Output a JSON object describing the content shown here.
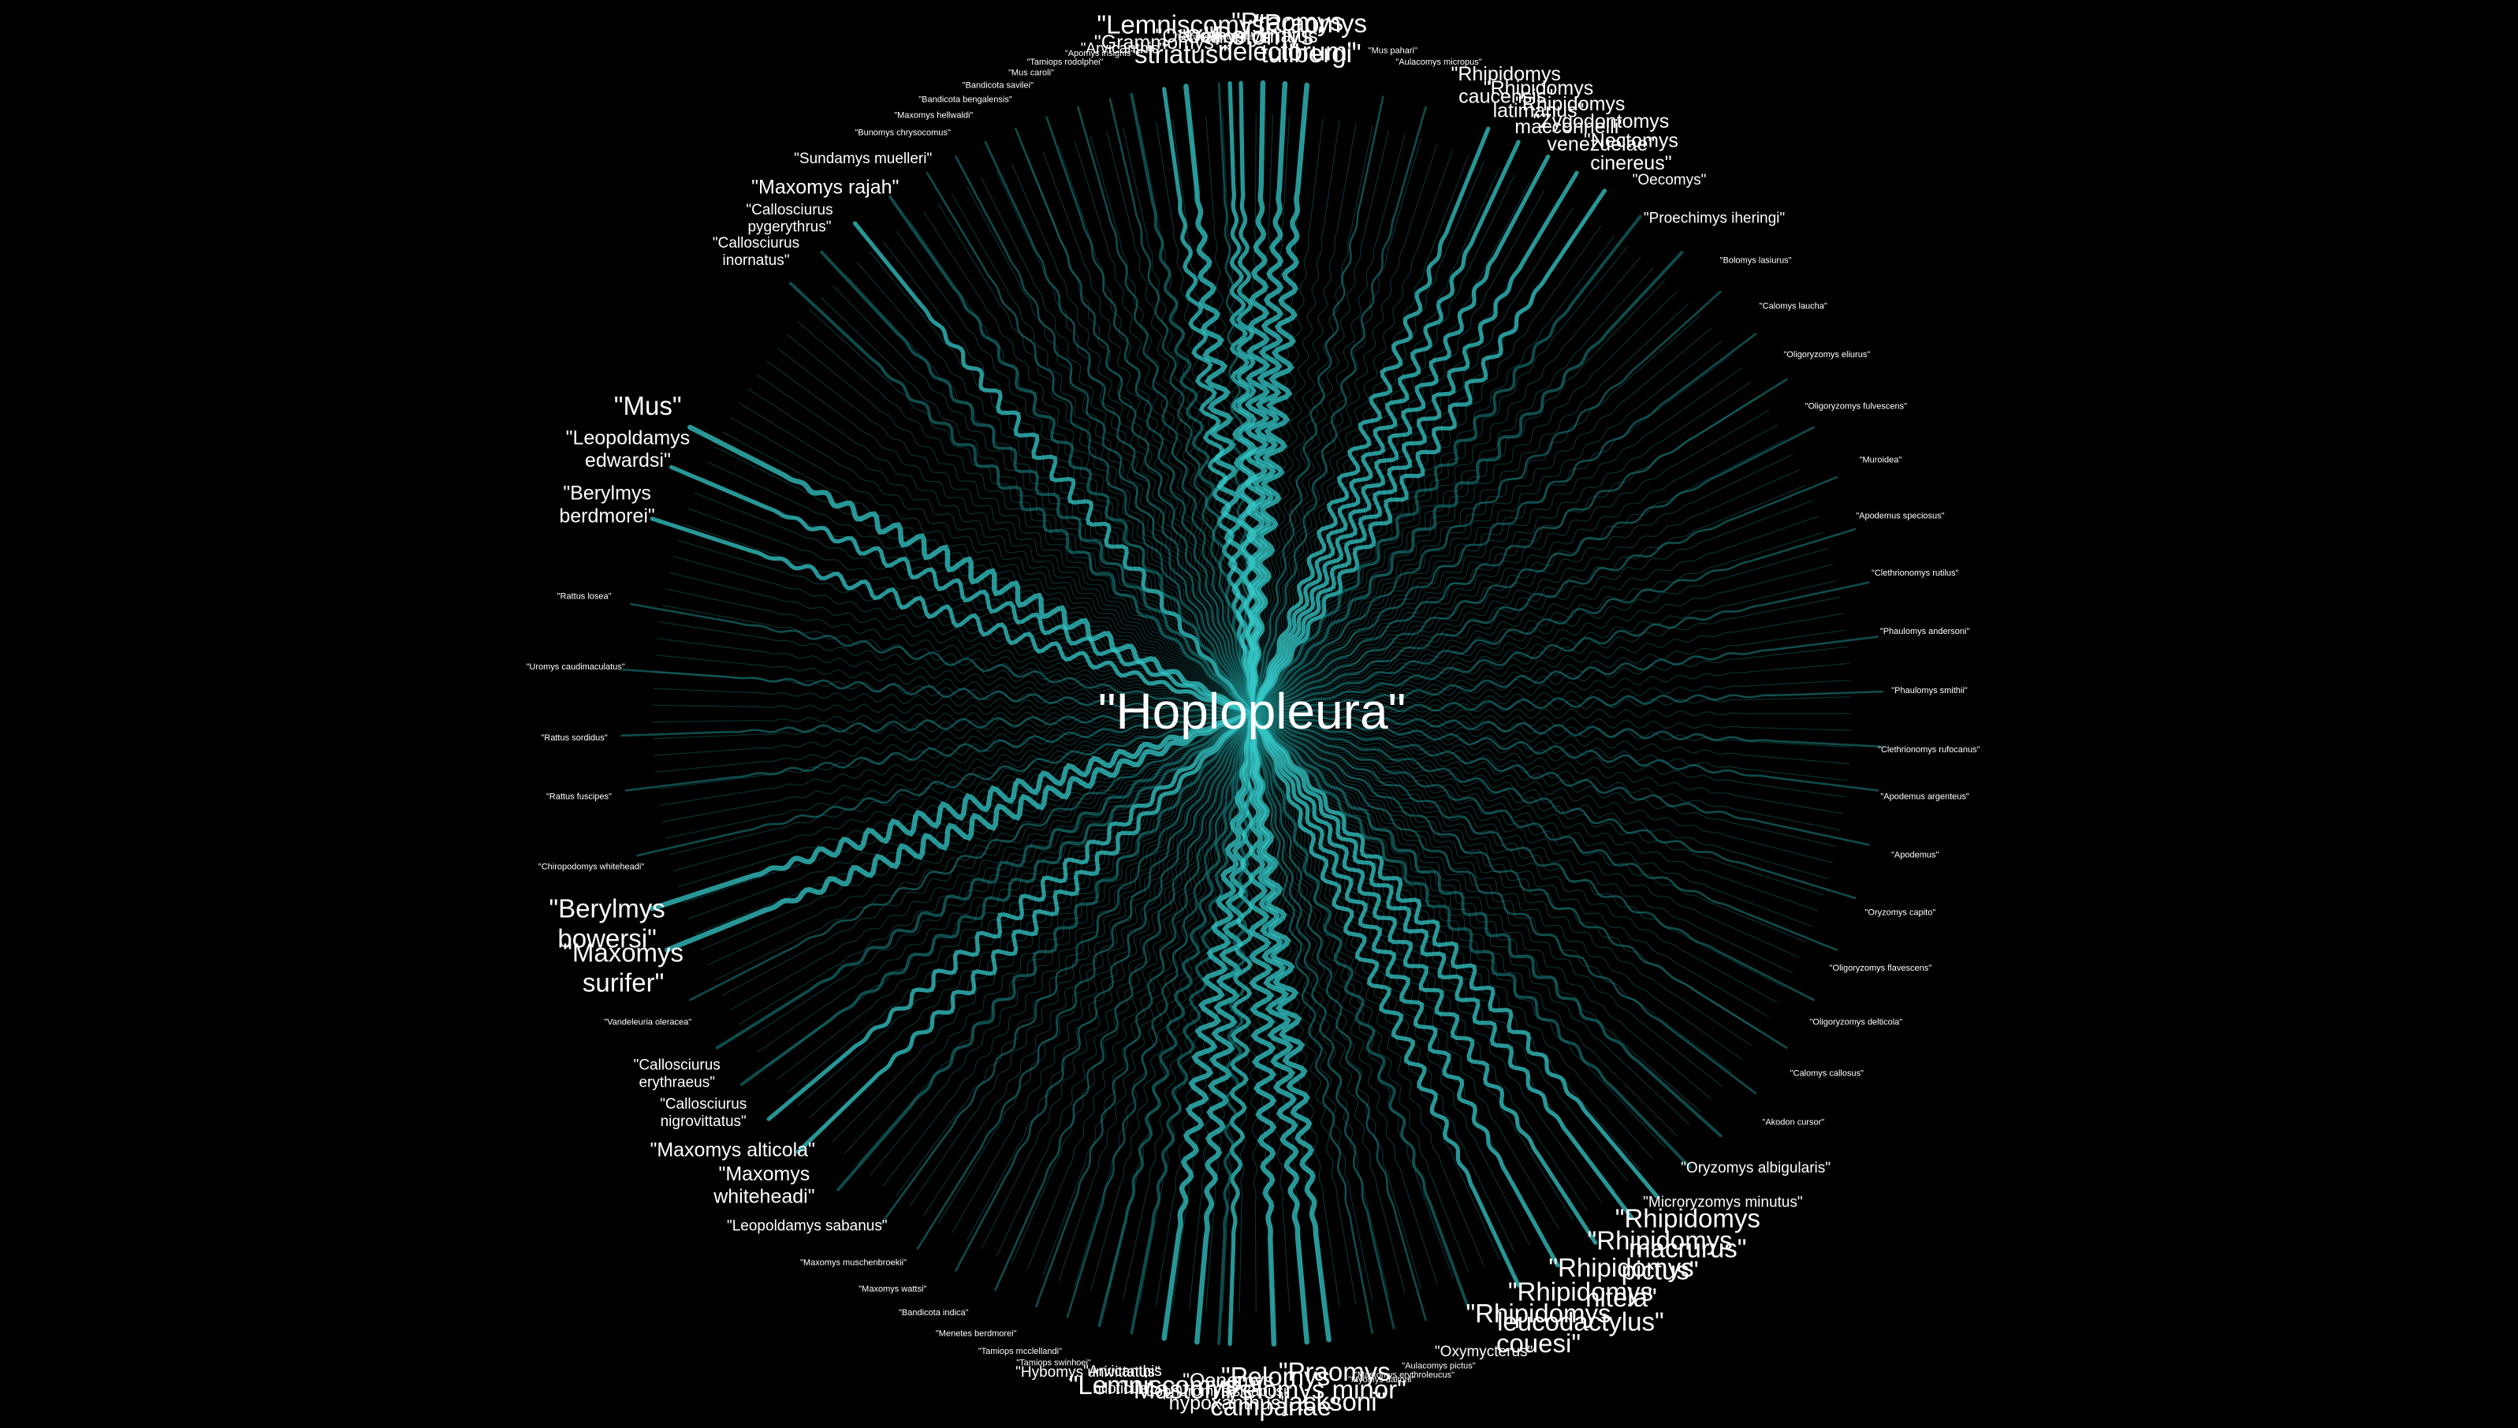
{
  "hub": {
    "label": "\"Hoplopleura\""
  },
  "colors": {
    "background": "#000000",
    "edge": "#1c8a8a",
    "edge_bright": "#35c8c8",
    "label": "#ffffff"
  },
  "nodes": [
    {
      "label": "\"Lemniscomys striatus\"",
      "angle": 96,
      "size": "lg",
      "weight": 5
    },
    {
      "label": "\"Oenomys\"",
      "angle": 92,
      "size": "md",
      "weight": 4
    },
    {
      "label": "\"Pelomys\"",
      "angle": 89,
      "size": "lg",
      "weight": 5
    },
    {
      "label": "\"Praomys tullbergi\"",
      "angle": 85,
      "size": "lg",
      "weight": 5
    },
    {
      "label": "\"Praomys delectorum\"",
      "angle": 87,
      "size": "lg",
      "weight": 5
    },
    {
      "label": "\"Grammomys\"",
      "angle": 98,
      "size": "md",
      "weight": 4
    },
    {
      "label": "\"Myomyscus albipes\"",
      "angle": 93,
      "size": "xs",
      "weight": 2
    },
    {
      "label": "\"Oenomys ornatus\"",
      "angle": 91,
      "size": "md",
      "weight": 4
    },
    {
      "label": "\"Arvicanthis\"",
      "angle": 101,
      "size": "sm",
      "weight": 3
    },
    {
      "label": "\"Apomys insignis\"",
      "angle": 103,
      "size": "xs",
      "weight": 2
    },
    {
      "label": "\"Tamiops rodolphei\"",
      "angle": 106,
      "size": "xs",
      "weight": 2
    },
    {
      "label": "\"Mus caroli\"",
      "angle": 109,
      "size": "xs",
      "weight": 2
    },
    {
      "label": "\"Bandicota savilei\"",
      "angle": 112,
      "size": "xs",
      "weight": 2
    },
    {
      "label": "\"Bandicota bengalensis\"",
      "angle": 115,
      "size": "xs",
      "weight": 2
    },
    {
      "label": "\"Maxomys hellwaldi\"",
      "angle": 118,
      "size": "xs",
      "weight": 2
    },
    {
      "label": "\"Bunomys chrysocomus\"",
      "angle": 121,
      "size": "xs",
      "weight": 2
    },
    {
      "label": "\"Sundamys muelleri\"",
      "angle": 125,
      "size": "sm",
      "weight": 3
    },
    {
      "label": "\"Maxomys rajah\"",
      "angle": 129,
      "size": "md",
      "weight": 4
    },
    {
      "label": "\"Callosciurus pygerythrus\"",
      "angle": 133,
      "size": "sm",
      "weight": 3
    },
    {
      "label": "\"Callosciurus inornatus\"",
      "angle": 137,
      "size": "sm",
      "weight": 3
    },
    {
      "label": "\"Mus\"",
      "angle": 153,
      "size": "lg",
      "weight": 5
    },
    {
      "label": "\"Leopoldamys edwardsi\"",
      "angle": 157,
      "size": "md",
      "weight": 4
    },
    {
      "label": "\"Berylmys berdmorei\"",
      "angle": 162,
      "size": "md",
      "weight": 4
    },
    {
      "label": "\"Rattus losea\"",
      "angle": 170,
      "size": "xs",
      "weight": 2
    },
    {
      "label": "\"Uromys caudimaculatus\"",
      "angle": 176,
      "size": "xs",
      "weight": 2
    },
    {
      "label": "\"Rattus sordidus\"",
      "angle": 182,
      "size": "xs",
      "weight": 2
    },
    {
      "label": "\"Rattus fuscipes\"",
      "angle": 187,
      "size": "xs",
      "weight": 2
    },
    {
      "label": "\"Chiropodomys whiteheadi\"",
      "angle": 193,
      "size": "xs",
      "weight": 2
    },
    {
      "label": "\"Berylmys bowersi\"",
      "angle": 198,
      "size": "lg",
      "weight": 5
    },
    {
      "label": "\"Maxomys surifer\"",
      "angle": 202,
      "size": "lg",
      "weight": 5
    },
    {
      "label": "\"Vandeleuria oleracea\"",
      "angle": 207,
      "size": "xs",
      "weight": 2
    },
    {
      "label": "\"Callosciurus erythraeus\"",
      "angle": 212,
      "size": "sm",
      "weight": 3
    },
    {
      "label": "\"Callosciurus nigrovittatus\"",
      "angle": 216,
      "size": "sm",
      "weight": 3
    },
    {
      "label": "\"Maxomys alticola\"",
      "angle": 220,
      "size": "md",
      "weight": 4
    },
    {
      "label": "\"Maxomys whiteheadi\"",
      "angle": 224,
      "size": "md",
      "weight": 4
    },
    {
      "label": "\"Leopoldamys sabanus\"",
      "angle": 229,
      "size": "sm",
      "weight": 3
    },
    {
      "label": "\"Maxomys muschenbroekii\"",
      "angle": 234,
      "size": "xs",
      "weight": 2
    },
    {
      "label": "\"Maxomys wattsi\"",
      "angle": 238,
      "size": "xs",
      "weight": 2
    },
    {
      "label": "\"Bandicota indica\"",
      "angle": 242,
      "size": "xs",
      "weight": 2
    },
    {
      "label": "\"Menetes berdmorei\"",
      "angle": 246,
      "size": "xs",
      "weight": 2
    },
    {
      "label": "\"Tamiops mcclellandi\"",
      "angle": 250,
      "size": "xs",
      "weight": 2
    },
    {
      "label": "\"Tamiops swinhoei\"",
      "angle": 253,
      "size": "xs",
      "weight": 2
    },
    {
      "label": "\"Hybomys univittatus\"",
      "angle": 256,
      "size": "sm",
      "weight": 3
    },
    {
      "label": "\"Arvicanthis niloticus\"",
      "angle": 259,
      "size": "sm",
      "weight": 3
    },
    {
      "label": "\"Lemniscomys\"",
      "angle": 262,
      "size": "lg",
      "weight": 5
    },
    {
      "label": "\"Mastomys\"",
      "angle": 265,
      "size": "lg",
      "weight": 5
    },
    {
      "label": "\"Oenomys hypoxanthus\"",
      "angle": 268,
      "size": "md",
      "weight": 4
    },
    {
      "label": "\"Lophuromys sikapusi\"",
      "angle": 267,
      "size": "sm",
      "weight": 3
    },
    {
      "label": "\"Pelomys campanae\"",
      "angle": 272,
      "size": "lg",
      "weight": 5
    },
    {
      "label": "\"Pelomys minor\"",
      "angle": 275,
      "size": "lg",
      "weight": 5
    },
    {
      "label": "\"Praomys jacksoni\"",
      "angle": 277,
      "size": "lg",
      "weight": 5
    },
    {
      "label": "\"Myomys daltoni\"",
      "angle": 281,
      "size": "xs",
      "weight": 2
    },
    {
      "label": "\"Mastomys erythroleucus\"",
      "angle": 283,
      "size": "xs",
      "weight": 2
    },
    {
      "label": "\"Aulacomys pictus\"",
      "angle": 286,
      "size": "xs",
      "weight": 2
    },
    {
      "label": "\"Oxymycterus\"",
      "angle": 290,
      "size": "sm",
      "weight": 3
    },
    {
      "label": "\"Rhipidomys couesi\"",
      "angle": 295,
      "size": "lg",
      "weight": 4
    },
    {
      "label": "\"Rhipidomys leucodactylus\"",
      "angle": 299,
      "size": "lg",
      "weight": 4
    },
    {
      "label": "\"Rhipidomys nitela\"",
      "angle": 303,
      "size": "lg",
      "weight": 4
    },
    {
      "label": "\"Rhipidomys pictus\"",
      "angle": 307,
      "size": "lg",
      "weight": 4
    },
    {
      "label": "\"Rhipidomys macrurus\"",
      "angle": 310,
      "size": "lg",
      "weight": 4
    },
    {
      "label": "\"Microryzomys minutus\"",
      "angle": 314,
      "size": "sm",
      "weight": 3
    },
    {
      "label": "\"Oryzomys albigularis\"",
      "angle": 318,
      "size": "sm",
      "weight": 3
    },
    {
      "label": "\"Akodon cursor\"",
      "angle": 323,
      "size": "xs",
      "weight": 2
    },
    {
      "label": "\"Calomys callosus\"",
      "angle": 328,
      "size": "xs",
      "weight": 2
    },
    {
      "label": "\"Oligoryzomys delticola\"",
      "angle": 333,
      "size": "xs",
      "weight": 2
    },
    {
      "label": "\"Oligoryzomys flavescens\"",
      "angle": 338,
      "size": "xs",
      "weight": 2
    },
    {
      "label": "\"Oryzomys capito\"",
      "angle": 343,
      "size": "xs",
      "weight": 2
    },
    {
      "label": "\"Apodemus\"",
      "angle": 348,
      "size": "xs",
      "weight": 2
    },
    {
      "label": "\"Apodemus argenteus\"",
      "angle": 353,
      "size": "xs",
      "weight": 2
    },
    {
      "label": "\"Clethrionomys rufocanus\"",
      "angle": 357,
      "size": "xs",
      "weight": 2
    },
    {
      "label": "\"Phaulomys smithii\"",
      "angle": 2,
      "size": "xs",
      "weight": 2
    },
    {
      "label": "\"Phaulomys andersoni\"",
      "angle": 7,
      "size": "xs",
      "weight": 2
    },
    {
      "label": "\"Clethrionomys rutilus\"",
      "angle": 12,
      "size": "xs",
      "weight": 2
    },
    {
      "label": "\"Apodemus speciosus\"",
      "angle": 17,
      "size": "xs",
      "weight": 2
    },
    {
      "label": "\"Muroidea\"",
      "angle": 22,
      "size": "xs",
      "weight": 2
    },
    {
      "label": "\"Oligoryzomys fulvescens\"",
      "angle": 27,
      "size": "xs",
      "weight": 2
    },
    {
      "label": "\"Oligoryzomys eliurus\"",
      "angle": 32,
      "size": "xs",
      "weight": 2
    },
    {
      "label": "\"Calomys laucha\"",
      "angle": 37,
      "size": "xs",
      "weight": 2
    },
    {
      "label": "\"Bolomys lasiurus\"",
      "angle": 42,
      "size": "xs",
      "weight": 2
    },
    {
      "label": "\"Proechimys iheringi\"",
      "angle": 47,
      "size": "sm",
      "weight": 3
    },
    {
      "label": "\"Oecomys\"",
      "angle": 52,
      "size": "sm",
      "weight": 3
    },
    {
      "label": "\"Nectomys cinereus\"",
      "angle": 56,
      "size": "md",
      "weight": 4
    },
    {
      "label": "\"Zygodontomys venezuelae\"",
      "angle": 59,
      "size": "md",
      "weight": 4
    },
    {
      "label": "\"Rhipidomys macconnelli\"",
      "angle": 62,
      "size": "md",
      "weight": 4
    },
    {
      "label": "\"Rhipidomys latimanus\"",
      "angle": 65,
      "size": "md",
      "weight": 4
    },
    {
      "label": "\"Rhipidomys caucensis\"",
      "angle": 68,
      "size": "md",
      "weight": 4
    },
    {
      "label": "\"Aulacomys micropus\"",
      "angle": 74,
      "size": "xs",
      "weight": 2
    },
    {
      "label": "\"Mus pahari\"",
      "angle": 78,
      "size": "xs",
      "weight": 2
    }
  ]
}
